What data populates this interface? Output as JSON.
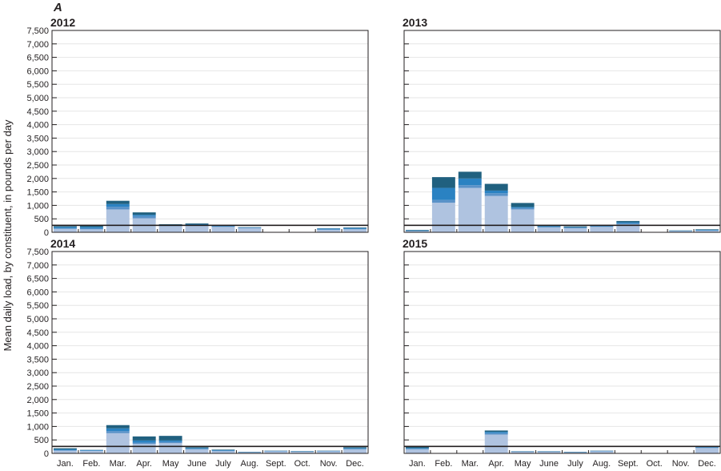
{
  "figure": {
    "panel_label": "A",
    "ylabel": "Mean daily load, by constituent, in pounds per day"
  },
  "colors": {
    "layer1": "#afc3e0",
    "layer2": "#5a92c8",
    "layer3": "#2a82c2",
    "layer4": "#20607f",
    "reference_line": "#231f20",
    "grid": "#e6e6e6"
  },
  "chart_data": [
    {
      "type": "bar",
      "stacked": true,
      "title": "2012",
      "categories": [
        "Jan.",
        "Feb.",
        "Mar.",
        "Apr.",
        "May",
        "June",
        "July",
        "Aug.",
        "Sept.",
        "Oct.",
        "Nov.",
        "Dec."
      ],
      "yticks": [
        "0",
        "500",
        "1,000",
        "1,500",
        "2,000",
        "2,500",
        "3,000",
        "3,500",
        "4,000",
        "4,500",
        "5,000",
        "5,500",
        "6,000",
        "6,500",
        "7,000",
        "7,500"
      ],
      "ylim": [
        0,
        7500
      ],
      "reference_line": 260,
      "series": [
        {
          "values": [
            130,
            110,
            850,
            520,
            230,
            250,
            200,
            150,
            0,
            0,
            90,
            110
          ]
        },
        {
          "values": [
            20,
            40,
            100,
            80,
            20,
            30,
            20,
            20,
            0,
            0,
            20,
            20
          ]
        },
        {
          "values": [
            50,
            50,
            100,
            50,
            20,
            20,
            20,
            10,
            0,
            0,
            30,
            30
          ]
        },
        {
          "values": [
            30,
            50,
            120,
            90,
            30,
            30,
            20,
            10,
            0,
            0,
            10,
            20
          ]
        }
      ]
    },
    {
      "type": "bar",
      "stacked": true,
      "title": "2013",
      "categories": [
        "Jan.",
        "Feb.",
        "Mar.",
        "Apr.",
        "May",
        "June",
        "July",
        "Aug.",
        "Sept.",
        "Oct.",
        "Nov.",
        "Dec."
      ],
      "yticks": [
        "0",
        "500",
        "1,000",
        "1,500",
        "2,000",
        "2,500",
        "3,000",
        "3,500",
        "4,000",
        "4,500",
        "5,000",
        "5,500",
        "6,000",
        "6,500",
        "7,000",
        "7,500"
      ],
      "ylim": [
        0,
        7500
      ],
      "reference_line": 260,
      "series": [
        {
          "values": [
            40,
            1100,
            1650,
            1350,
            850,
            180,
            150,
            200,
            300,
            0,
            40,
            60
          ]
        },
        {
          "values": [
            10,
            100,
            100,
            100,
            50,
            20,
            20,
            20,
            30,
            0,
            10,
            10
          ]
        },
        {
          "values": [
            20,
            450,
            250,
            100,
            40,
            30,
            20,
            20,
            40,
            0,
            10,
            20
          ]
        },
        {
          "values": [
            20,
            400,
            250,
            250,
            150,
            30,
            30,
            20,
            50,
            0,
            10,
            20
          ]
        }
      ]
    },
    {
      "type": "bar",
      "stacked": true,
      "title": "2014",
      "categories": [
        "Jan.",
        "Feb.",
        "Mar.",
        "Apr.",
        "May",
        "June",
        "July",
        "Aug.",
        "Sept.",
        "Oct.",
        "Nov.",
        "Dec."
      ],
      "yticks": [
        "0",
        "500",
        "1,000",
        "1,500",
        "2,000",
        "2,500",
        "3,000",
        "3,500",
        "4,000",
        "4,500",
        "5,000",
        "5,500",
        "6,000",
        "6,500",
        "7,000",
        "7,500"
      ],
      "ylim": [
        0,
        7500
      ],
      "reference_line": 260,
      "series": [
        {
          "values": [
            100,
            90,
            750,
            350,
            380,
            150,
            80,
            30,
            70,
            60,
            70,
            150
          ]
        },
        {
          "values": [
            20,
            10,
            80,
            50,
            50,
            20,
            20,
            10,
            10,
            10,
            10,
            20
          ]
        },
        {
          "values": [
            30,
            20,
            100,
            80,
            50,
            30,
            20,
            10,
            10,
            10,
            10,
            30
          ]
        },
        {
          "values": [
            40,
            10,
            120,
            150,
            170,
            30,
            20,
            10,
            10,
            10,
            10,
            30
          ]
        }
      ]
    },
    {
      "type": "bar",
      "stacked": true,
      "title": "2015",
      "categories": [
        "Jan.",
        "Feb.",
        "Mar.",
        "Apr.",
        "May",
        "June",
        "July",
        "Aug.",
        "Sept.",
        "Oct.",
        "Nov.",
        "Dec."
      ],
      "yticks": [
        "0",
        "500",
        "1,000",
        "1,500",
        "2,000",
        "2,500",
        "3,000",
        "3,500",
        "4,000",
        "4,500",
        "5,000",
        "5,500",
        "6,000",
        "6,500",
        "7,000",
        "7,500"
      ],
      "ylim": [
        0,
        7500
      ],
      "reference_line": 260,
      "series": [
        {
          "values": [
            150,
            0,
            0,
            700,
            50,
            50,
            30,
            70,
            0,
            0,
            0,
            200
          ]
        },
        {
          "values": [
            20,
            0,
            0,
            50,
            10,
            10,
            10,
            10,
            0,
            0,
            0,
            20
          ]
        },
        {
          "values": [
            30,
            0,
            0,
            50,
            10,
            10,
            10,
            10,
            0,
            0,
            0,
            20
          ]
        },
        {
          "values": [
            50,
            0,
            0,
            50,
            10,
            10,
            10,
            10,
            0,
            0,
            0,
            20
          ]
        }
      ]
    }
  ]
}
